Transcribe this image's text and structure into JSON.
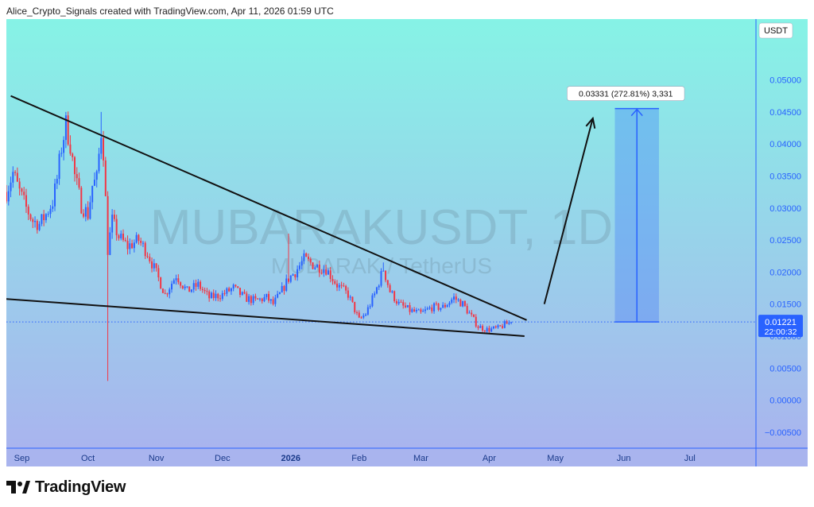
{
  "header": {
    "attribution": "Alice_Crypto_Signals created with TradingView.com, Apr 11, 2026 01:59 UTC"
  },
  "chart": {
    "watermark_main": "MUBARAKUSDT, 1D",
    "watermark_sub": "MUBARAK / TetherUS",
    "currency_label": "USDT",
    "price_badge": {
      "price": "0.01221",
      "countdown": "22:00:32"
    },
    "measure_label": "0.03331 (272.81%) 3,331",
    "colors": {
      "bg_top": "#86f3e6",
      "bg_bottom": "#a9b4ee",
      "up": "#2962ff",
      "down": "#f23645",
      "accent": "#2962ff",
      "line": "#111111"
    }
  },
  "footer": {
    "brand": "TradingView",
    "logo_icon": "tradingview-logo-icon"
  },
  "chart_data": {
    "type": "candlestick",
    "title": "MUBARAKUSDT, 1D",
    "subtitle": "MUBARAK / TetherUS",
    "ylabel": "USDT",
    "ylim": [
      -0.0075,
      0.0595
    ],
    "yticks": [
      "0.05000",
      "0.04500",
      "0.04000",
      "0.03500",
      "0.03000",
      "0.02500",
      "0.02000",
      "0.01500",
      "0.01000",
      "0.00500",
      "0.00000",
      "−0.00500"
    ],
    "ytick_values": [
      0.05,
      0.045,
      0.04,
      0.035,
      0.03,
      0.025,
      0.02,
      0.015,
      0.01,
      0.005,
      0.0,
      -0.005
    ],
    "x_range": [
      "2025-08-25",
      "2026-07-31"
    ],
    "xticks": [
      {
        "date": "2025-09-01",
        "label": "Sep",
        "bold": false
      },
      {
        "date": "2025-10-01",
        "label": "Oct",
        "bold": false
      },
      {
        "date": "2025-11-01",
        "label": "Nov",
        "bold": false
      },
      {
        "date": "2025-12-01",
        "label": "Dec",
        "bold": false
      },
      {
        "date": "2026-01-01",
        "label": "2026",
        "bold": true
      },
      {
        "date": "2026-02-01",
        "label": "Feb",
        "bold": false
      },
      {
        "date": "2026-03-01",
        "label": "Mar",
        "bold": false
      },
      {
        "date": "2026-04-01",
        "label": "Apr",
        "bold": false
      },
      {
        "date": "2026-05-01",
        "label": "May",
        "bold": false
      },
      {
        "date": "2026-06-01",
        "label": "Jun",
        "bold": false
      },
      {
        "date": "2026-07-01",
        "label": "Jul",
        "bold": false
      }
    ],
    "price_path": [
      {
        "date": "2025-08-25",
        "close": 0.0325
      },
      {
        "date": "2025-08-28",
        "close": 0.0355
      },
      {
        "date": "2025-08-31",
        "close": 0.0325
      },
      {
        "date": "2025-09-03",
        "close": 0.03
      },
      {
        "date": "2025-09-06",
        "close": 0.028
      },
      {
        "date": "2025-09-09",
        "close": 0.0275
      },
      {
        "date": "2025-09-12",
        "close": 0.029
      },
      {
        "date": "2025-09-15",
        "close": 0.031
      },
      {
        "date": "2025-09-17",
        "close": 0.0345
      },
      {
        "date": "2025-09-19",
        "close": 0.0395
      },
      {
        "date": "2025-09-21",
        "close": 0.043
      },
      {
        "date": "2025-09-23",
        "close": 0.04
      },
      {
        "date": "2025-09-25",
        "close": 0.035
      },
      {
        "date": "2025-09-28",
        "close": 0.0305
      },
      {
        "date": "2025-10-01",
        "close": 0.029
      },
      {
        "date": "2025-10-03",
        "close": 0.0335
      },
      {
        "date": "2025-10-05",
        "close": 0.0345
      },
      {
        "date": "2025-10-07",
        "close": 0.042
      },
      {
        "date": "2025-10-08",
        "close": 0.039
      },
      {
        "date": "2025-10-10",
        "close": 0.0235
      },
      {
        "date": "2025-10-12",
        "close": 0.028
      },
      {
        "date": "2025-10-15",
        "close": 0.0255
      },
      {
        "date": "2025-10-19",
        "close": 0.024
      },
      {
        "date": "2025-10-24",
        "close": 0.025
      },
      {
        "date": "2025-10-28",
        "close": 0.023
      },
      {
        "date": "2025-11-02",
        "close": 0.019
      },
      {
        "date": "2025-11-05",
        "close": 0.0165
      },
      {
        "date": "2025-11-10",
        "close": 0.0195
      },
      {
        "date": "2025-11-15",
        "close": 0.017
      },
      {
        "date": "2025-11-20",
        "close": 0.018
      },
      {
        "date": "2025-11-25",
        "close": 0.016
      },
      {
        "date": "2025-12-01",
        "close": 0.0165
      },
      {
        "date": "2025-12-06",
        "close": 0.0175
      },
      {
        "date": "2025-12-11",
        "close": 0.016
      },
      {
        "date": "2025-12-16",
        "close": 0.0155
      },
      {
        "date": "2025-12-21",
        "close": 0.016
      },
      {
        "date": "2025-12-24",
        "close": 0.015
      },
      {
        "date": "2025-12-27",
        "close": 0.0165
      },
      {
        "date": "2025-12-31",
        "close": 0.019
      },
      {
        "date": "2026-01-03",
        "close": 0.02
      },
      {
        "date": "2026-01-07",
        "close": 0.022
      },
      {
        "date": "2026-01-12",
        "close": 0.021
      },
      {
        "date": "2026-01-17",
        "close": 0.0205
      },
      {
        "date": "2026-01-22",
        "close": 0.018
      },
      {
        "date": "2026-01-27",
        "close": 0.0165
      },
      {
        "date": "2026-02-01",
        "close": 0.0125
      },
      {
        "date": "2026-02-04",
        "close": 0.0135
      },
      {
        "date": "2026-02-08",
        "close": 0.0165
      },
      {
        "date": "2026-02-12",
        "close": 0.0205
      },
      {
        "date": "2026-02-15",
        "close": 0.017
      },
      {
        "date": "2026-02-19",
        "close": 0.015
      },
      {
        "date": "2026-02-24",
        "close": 0.014
      },
      {
        "date": "2026-03-01",
        "close": 0.0135
      },
      {
        "date": "2026-03-06",
        "close": 0.0145
      },
      {
        "date": "2026-03-11",
        "close": 0.0145
      },
      {
        "date": "2026-03-16",
        "close": 0.016
      },
      {
        "date": "2026-03-20",
        "close": 0.015
      },
      {
        "date": "2026-03-24",
        "close": 0.013
      },
      {
        "date": "2026-03-27",
        "close": 0.0115
      },
      {
        "date": "2026-03-31",
        "close": 0.011
      },
      {
        "date": "2026-04-05",
        "close": 0.0112
      },
      {
        "date": "2026-04-08",
        "close": 0.0118
      },
      {
        "date": "2026-04-11",
        "close": 0.01221
      }
    ],
    "wicks": [
      {
        "date": "2025-09-21",
        "high": 0.045
      },
      {
        "date": "2025-10-07",
        "high": 0.045
      },
      {
        "date": "2025-10-10",
        "low": 0.003
      },
      {
        "date": "2025-12-31",
        "high": 0.026
      },
      {
        "date": "2026-02-12",
        "high": 0.0215
      }
    ],
    "last_price": 0.01221,
    "annotations": {
      "upper_trendline": [
        {
          "date": "2025-08-27",
          "price": 0.0475
        },
        {
          "date": "2026-04-18",
          "price": 0.0125
        }
      ],
      "lower_trendline": [
        {
          "date": "2025-08-25",
          "price": 0.0158
        },
        {
          "date": "2026-04-17",
          "price": 0.01
        }
      ],
      "arrow": [
        {
          "date": "2026-04-26",
          "price": 0.015
        },
        {
          "date": "2026-05-18",
          "price": 0.044
        }
      ],
      "price_range": {
        "from_date": "2026-05-28",
        "to_date": "2026-06-17",
        "low": 0.01221,
        "high": 0.04552,
        "delta": 0.03331,
        "percent": 272.81,
        "ticks": 3331
      }
    }
  }
}
